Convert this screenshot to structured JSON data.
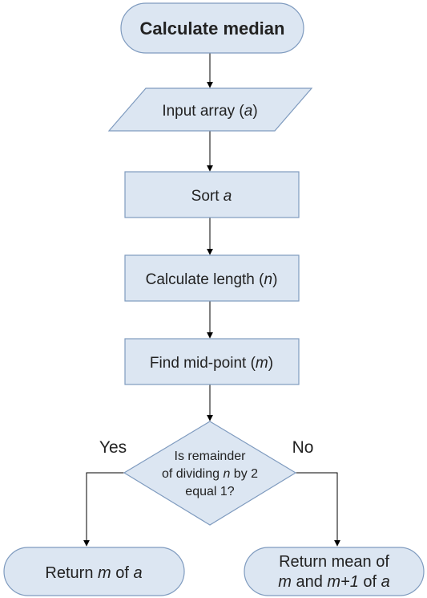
{
  "nodes": {
    "start": {
      "text": "Calculate median"
    },
    "input": {
      "pre": "Input array (",
      "var": "a",
      "post": ")"
    },
    "sort": {
      "pre": "Sort ",
      "var": "a"
    },
    "length": {
      "pre": "Calculate length (",
      "var": "n",
      "post": ")"
    },
    "midpoint": {
      "pre": "Find mid-point (",
      "var": "m",
      "post": ")"
    },
    "decision": {
      "line1": "Is remainder",
      "line2_pre": "of dividing ",
      "line2_var": "n",
      "line2_post": " by 2",
      "line3": "equal 1?"
    },
    "return_left": {
      "pre": "Return ",
      "var1": "m",
      "mid": " of ",
      "var2": "a"
    },
    "return_right": {
      "line1": "Return mean of",
      "l2_var1": "m",
      "l2_mid": " and ",
      "l2_var2": "m+1",
      "l2_mid2": " of ",
      "l2_var3": "a"
    }
  },
  "edges": {
    "yes_label": "Yes",
    "no_label": "No"
  }
}
